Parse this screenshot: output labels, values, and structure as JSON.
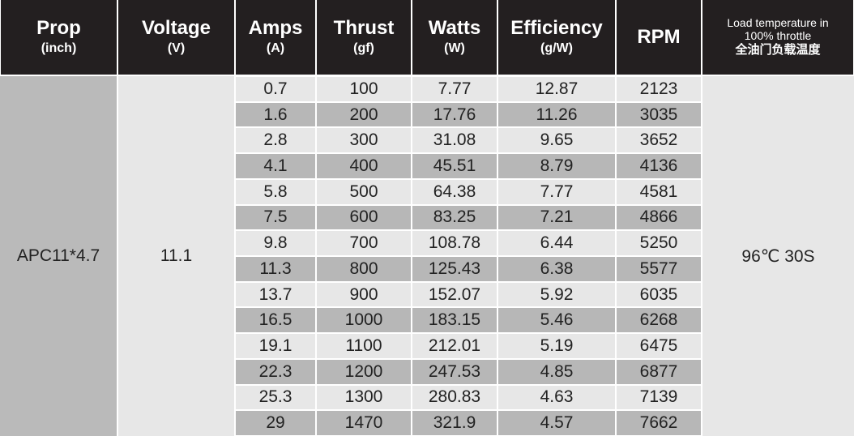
{
  "header": {
    "columns": [
      {
        "title": "Prop",
        "unit": "(inch)"
      },
      {
        "title": "Voltage",
        "unit": "(V)"
      },
      {
        "title": "Amps",
        "unit": "(A)"
      },
      {
        "title": "Thrust",
        "unit": "(gf)"
      },
      {
        "title": "Watts",
        "unit": "(W)"
      },
      {
        "title": "Efficiency",
        "unit": "(g/W)"
      },
      {
        "title": "RPM"
      },
      {
        "lines": [
          "Load temperature in",
          "100% throttle"
        ],
        "cn": "全油门负载温度"
      }
    ]
  },
  "table": {
    "prop": "APC11*4.7",
    "voltage": 11.1,
    "load": "96℃ 30S",
    "rows": [
      [
        0.7,
        100,
        7.77,
        12.87,
        2123
      ],
      [
        1.6,
        200,
        17.76,
        11.26,
        3035
      ],
      [
        2.8,
        300,
        31.08,
        9.65,
        3652
      ],
      [
        4.1,
        400,
        45.51,
        8.79,
        4136
      ],
      [
        5.8,
        500,
        64.38,
        7.77,
        4581
      ],
      [
        7.5,
        600,
        83.25,
        7.21,
        4866
      ],
      [
        9.8,
        700,
        108.78,
        6.44,
        5250
      ],
      [
        11.3,
        800,
        125.43,
        6.38,
        5577
      ],
      [
        13.7,
        900,
        152.07,
        5.92,
        6035
      ],
      [
        16.5,
        1000,
        183.15,
        5.46,
        6268
      ],
      [
        19.1,
        1100,
        212.01,
        5.19,
        6475
      ],
      [
        22.3,
        1200,
        247.53,
        4.85,
        6877
      ],
      [
        25.3,
        1300,
        280.83,
        4.63,
        7139
      ],
      [
        29,
        1470,
        321.9,
        4.57,
        7662
      ]
    ]
  }
}
